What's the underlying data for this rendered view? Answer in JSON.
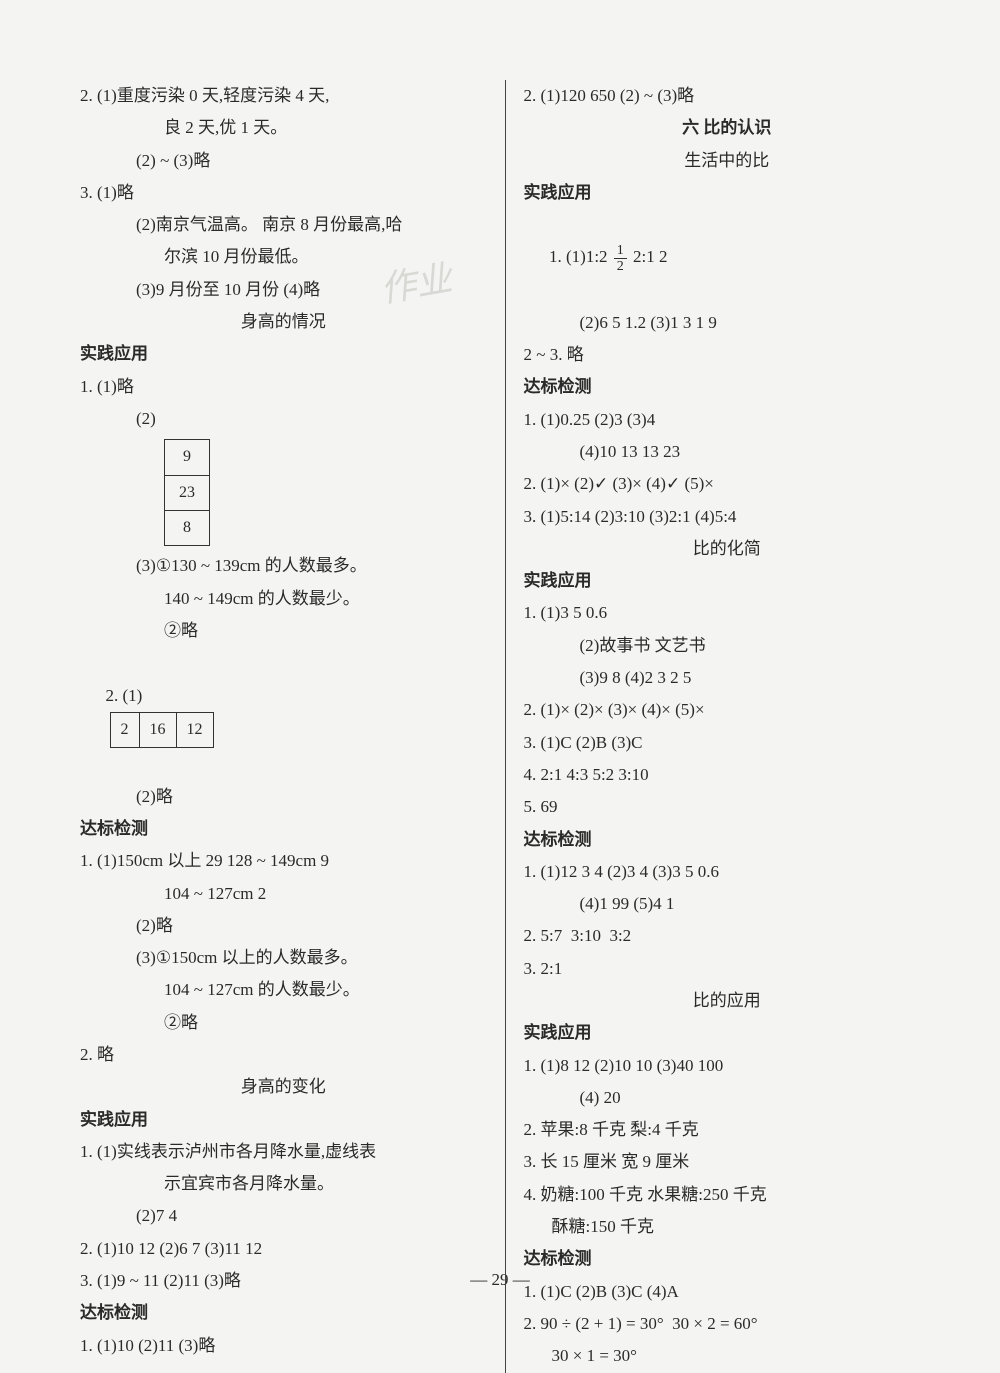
{
  "watermark": "作业",
  "page_number": "— 29 —",
  "left": {
    "l2_1": "2. (1)重度污染 0 天,轻度污染 4 天,",
    "l2_1b": "良 2 天,优 1 天。",
    "l2_2": "(2) ~ (3)略",
    "l3_1": "3. (1)略",
    "l3_2": "(2)南京气温高。 南京 8 月份最高,哈",
    "l3_2b": "尔滨 10 月份最低。",
    "l3_3": "(3)9 月份至 10 月份 (4)略",
    "sec1_title": "身高的情况",
    "sec1_h": "实践应用",
    "s1_1": "1. (1)略",
    "s1_2": "(2)",
    "tbl1": [
      "9",
      "23",
      "8"
    ],
    "s1_3a": "(3)①130 ~ 139cm 的人数最多。",
    "s1_3b": "140 ~ 149cm 的人数最少。",
    "s1_3c": "②略",
    "s1_q2": "2. (1)",
    "tbl2": [
      "2",
      "16",
      "12"
    ],
    "s1_q2b": "(2)略",
    "sec1_h2": "达标检测",
    "d1_1a": "1. (1)150cm 以上 29 128 ~ 149cm 9",
    "d1_1b": "104 ~ 127cm 2",
    "d1_2": "(2)略",
    "d1_3a": "(3)①150cm 以上的人数最多。",
    "d1_3b": "104 ~ 127cm 的人数最少。",
    "d1_3c": "②略",
    "d1_q2": "2. 略",
    "sec2_title": "身高的变化",
    "sec2_h": "实践应用",
    "s2_1a": "1. (1)实线表示泸州市各月降水量,虚线表",
    "s2_1b": "示宜宾市各月降水量。",
    "s2_1c": "(2)7 4",
    "s2_2": "2. (1)10 12 (2)6 7 (3)11 12",
    "s2_3": "3. (1)9 ~ 11 (2)11 (3)略",
    "sec2_h2": "达标检测",
    "d2_1": "1. (1)10 (2)11 (3)略"
  },
  "right": {
    "r2": "2. (1)120 650 (2) ~ (3)略",
    "sec3_title": "六 比的认识",
    "sec3_sub": "生活中的比",
    "sec3_h": "实践应用",
    "r1_1a_pre": "1. (1)1:2 ",
    "frac": {
      "n": "1",
      "d": "2"
    },
    "r1_1a_post": " 2:1 2",
    "r1_1b": "(2)6 5 1.2 (3)1 3 1 9",
    "r1_1c": "2 ~ 3. 略",
    "sec3_h2": "达标检测",
    "d3_1a": "1. (1)0.25 (2)3 (3)4",
    "d3_1b": "(4)10 13 13 23",
    "d3_2": "2. (1)× (2)✓ (3)× (4)✓ (5)×",
    "d3_3": "3. (1)5:14 (2)3:10 (3)2:1 (4)5:4",
    "sec4_title": "比的化简",
    "sec4_h": "实践应用",
    "s4_1a": "1. (1)3 5 0.6",
    "s4_1b": "(2)故事书 文艺书",
    "s4_1c": "(3)9 8 (4)2 3 2 5",
    "s4_2": "2. (1)× (2)× (3)× (4)× (5)×",
    "s4_3": "3. (1)C (2)B (3)C",
    "s4_4": "4. 2:1 4:3 5:2 3:10",
    "s4_5": "5. 69",
    "sec4_h2": "达标检测",
    "d4_1a": "1. (1)12 3 4 (2)3 4 (3)3 5 0.6",
    "d4_1b": "(4)1 99 (5)4 1",
    "d4_2": "2. 5:7  3:10  3:2",
    "d4_3": "3. 2:1",
    "sec5_title": "比的应用",
    "sec5_h": "实践应用",
    "s5_1a": "1. (1)8 12 (2)10 10 (3)40 100",
    "s5_1b": "(4) 20",
    "s5_2": "2. 苹果:8 千克 梨:4 千克",
    "s5_3": "3. 长 15 厘米 宽 9 厘米",
    "s5_4a": "4. 奶糖:100 千克 水果糖:250 千克",
    "s5_4b": "酥糖:150 千克",
    "sec5_h2": "达标检测",
    "d5_1": "1. (1)C (2)B (3)C (4)A",
    "d5_2a": "2. 90 ÷ (2 + 1) = 30°  30 × 2 = 60°",
    "d5_2b": "30 × 1 = 30°"
  }
}
